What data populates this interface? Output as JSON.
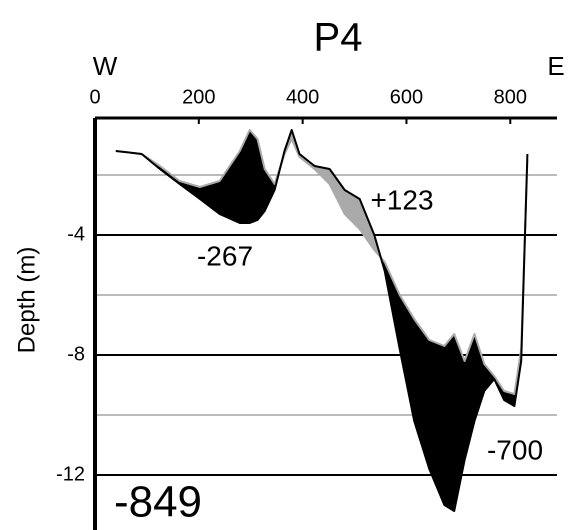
{
  "chart_data": {
    "type": "line",
    "title": "P4",
    "left_label": "W",
    "right_label": "E",
    "y_label": "Depth (m)",
    "x": [
      40,
      90,
      125,
      163,
      202,
      240,
      279,
      298,
      313,
      327,
      346,
      365,
      379,
      394,
      423,
      452,
      481,
      510,
      538,
      558,
      587,
      615,
      644,
      673,
      692,
      712,
      731,
      750,
      769,
      788,
      808,
      821,
      833
    ],
    "series": [
      {
        "color": "#000000",
        "values": [
          -1.2,
          -1.3,
          -1.8,
          -2.3,
          -2.8,
          -3.3,
          -3.6,
          -3.6,
          -3.5,
          -3.2,
          -2.5,
          -1.2,
          -0.5,
          -1.3,
          -1.7,
          -1.8,
          -2.5,
          -2.8,
          -4.0,
          -5.2,
          -7.8,
          -10.2,
          -11.8,
          -13.0,
          -13.2,
          -11.5,
          -10.2,
          -9.2,
          -8.8,
          -9.5,
          -9.7,
          -8.2,
          -1.3
        ]
      },
      {
        "color": "#aaaaaa",
        "values": [
          -1.2,
          -1.3,
          -1.7,
          -2.2,
          -2.4,
          -2.2,
          -1.2,
          -0.5,
          -0.8,
          -1.8,
          -2.3,
          -1.3,
          -0.8,
          -1.4,
          -1.8,
          -2.3,
          -3.3,
          -3.8,
          -4.5,
          -4.9,
          -6.0,
          -6.8,
          -7.5,
          -7.7,
          -7.3,
          -8.2,
          -7.3,
          -8.3,
          -8.7,
          -9.2,
          -9.3,
          -7.8,
          -1.5
        ]
      }
    ],
    "fill_between": true,
    "xlim": [
      0,
      890
    ],
    "xticks": [
      0,
      200,
      400,
      600,
      800
    ],
    "x_axis_position": "top",
    "ylim": [
      -13.5,
      0
    ],
    "yticks": [
      -4,
      -8,
      -12
    ],
    "minor_yticks": [
      -2,
      -6,
      -10
    ],
    "annotations": [
      {
        "text": "-267",
        "color": "#000000"
      },
      {
        "text": "+123",
        "color": "#aaaaaa"
      },
      {
        "text": "-700",
        "color": "#000000"
      },
      {
        "text": "-849",
        "color": "#000000"
      }
    ]
  }
}
